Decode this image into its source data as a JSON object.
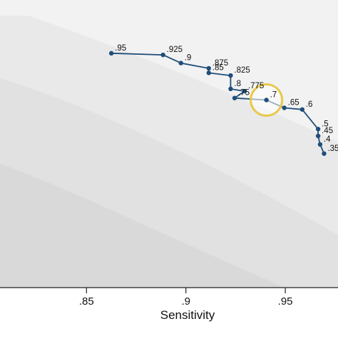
{
  "chart_data": {
    "type": "line",
    "xlabel": "Sensitivity",
    "ylabel": "",
    "xlim": [
      0.8065,
      0.9765
    ],
    "ylim": [
      0.56,
      1.0
    ],
    "x_ticks": [
      {
        "value": 0.85,
        "label": ".85"
      },
      {
        "value": 0.9,
        "label": ".9"
      },
      {
        "value": 0.95,
        "label": ".95"
      }
    ],
    "series": [
      {
        "color": "#1f4e79",
        "points": [
          {
            "label": ".95",
            "x": 0.8625,
            "y": 0.9185
          },
          {
            "label": ".925",
            "x": 0.8885,
            "y": 0.916
          },
          {
            "label": ".9",
            "x": 0.8975,
            "y": 0.9035
          },
          {
            "label": ".875",
            "x": 0.9115,
            "y": 0.8955
          },
          {
            "label": ".85",
            "x": 0.9115,
            "y": 0.8885
          },
          {
            "label": ".825",
            "x": 0.9225,
            "y": 0.8845
          },
          {
            "label": ".8",
            "x": 0.9225,
            "y": 0.864
          },
          {
            "label": ".775",
            "x": 0.9295,
            "y": 0.8605
          },
          {
            "label": ".75",
            "x": 0.9245,
            "y": 0.85
          },
          {
            "label": ".7",
            "x": 0.9405,
            "y": 0.847
          },
          {
            "label": ".65",
            "x": 0.9495,
            "y": 0.835
          },
          {
            "label": ".6",
            "x": 0.9585,
            "y": 0.8325
          },
          {
            "label": ".5",
            "x": 0.9665,
            "y": 0.8025
          },
          {
            "label": ".45",
            "x": 0.9665,
            "y": 0.792
          },
          {
            "label": ".4",
            "x": 0.9675,
            "y": 0.779
          },
          {
            "label": ".35",
            "x": 0.9695,
            "y": 0.765
          }
        ]
      }
    ],
    "highlight": {
      "label": ".7",
      "color": "#e9c84a"
    },
    "background_bands": [
      "#f2f2f2",
      "#e9e9e9",
      "#e1e1e1",
      "#d9d9d9"
    ],
    "grid": false,
    "legend": "none"
  }
}
